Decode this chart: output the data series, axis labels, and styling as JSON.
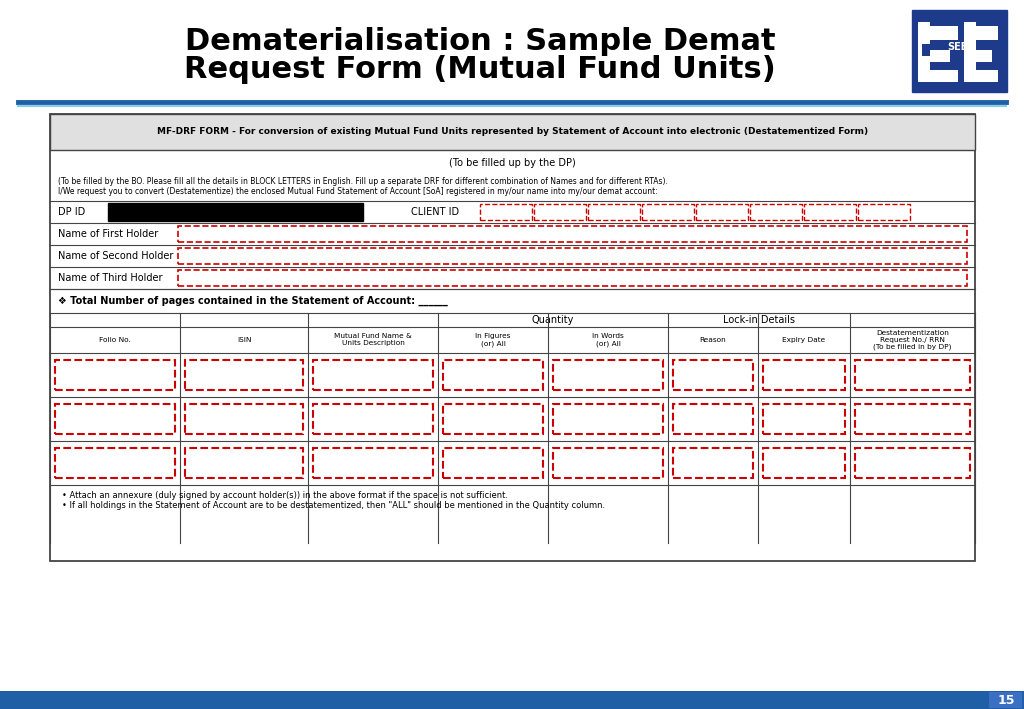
{
  "title_line1": "Dematerialisation : Sample Demat",
  "title_line2": "Request Form (Mutual Fund Units)",
  "title_fontsize": 22,
  "title_color": "#000000",
  "bg_color": "#ffffff",
  "border_color": "#555555",
  "red_dash": "#cc0000",
  "blue_line_color": "#1f5fa6",
  "slide_num": "15",
  "form_header_text": "MF-DRF FORM - For conversion of existing Mutual Fund Units represented by Statement of Account into electronic (Destatementized Form)",
  "form_subheader": "(To be filled up by the DP)",
  "instruction1": "(To be filled by the BO. Please fill all the details in BLOCK LETTERS in English. Fill up a separate DRF for different combination of Names and for different RTAs).",
  "instruction2": "I/We request you to convert (Destatementize) the enclosed Mutual Fund Statement of Account [SoA] registered in my/our name into my/our demat account:",
  "dp_id_label": "DP ID",
  "client_id_label": "CLIENT ID",
  "holder_labels": [
    "Name of First Holder",
    "Name of Second Holder",
    "Name of Third Holder"
  ],
  "total_pages_text": "❖ Total Number of pages contained in the Statement of Account: ______",
  "col_labels": [
    "Folio No.",
    "ISIN",
    "Mutual Fund Name &\nUnits Description",
    "In Figures\n(or) All",
    "In Words\n(or) All",
    "Reason",
    "Expiry Date",
    "Destatementization\nRequest No./ RRN\n(To be filled in by DP)"
  ],
  "footnote1": "Attach an annexure (duly signed by account holder(s)) in the above format if the space is not sufficient.",
  "footnote2": "If all holdings in the Statement of Account are to be destatementized, then \"ALL\" should be mentioned in the Quantity column.",
  "sebi_logo_color": "#1e3a8a"
}
